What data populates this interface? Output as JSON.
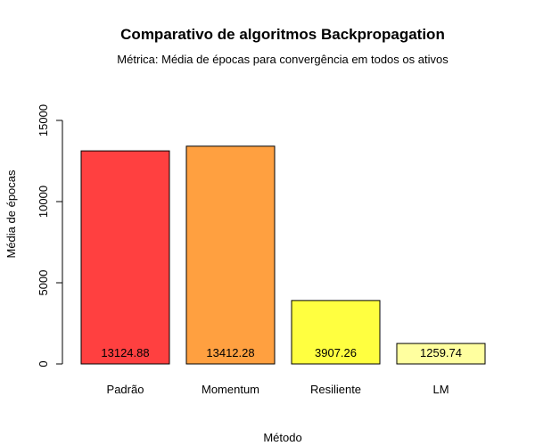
{
  "chart_data": {
    "type": "bar",
    "title": "Comparativo de algoritmos Backpropagation",
    "subtitle": "Métrica: Média de épocas para convergência em todos os ativos",
    "xlabel": "Método",
    "ylabel": "Média de épocas",
    "categories": [
      "Padrão",
      "Momentum",
      "Resiliente",
      "LM"
    ],
    "values": [
      13124.88,
      13412.28,
      3907.26,
      1259.74
    ],
    "value_labels": [
      "13124.88",
      "13412.28",
      "3907.26",
      "1259.74"
    ],
    "colors": [
      "#ff4040",
      "#ffa040",
      "#ffff40",
      "#ffff9f"
    ],
    "ylim": [
      0,
      15000
    ],
    "yticks": [
      0,
      5000,
      10000,
      15000
    ],
    "ytick_labels": [
      "0",
      "5000",
      "10000",
      "15000"
    ],
    "grid": false,
    "legend": "none"
  }
}
